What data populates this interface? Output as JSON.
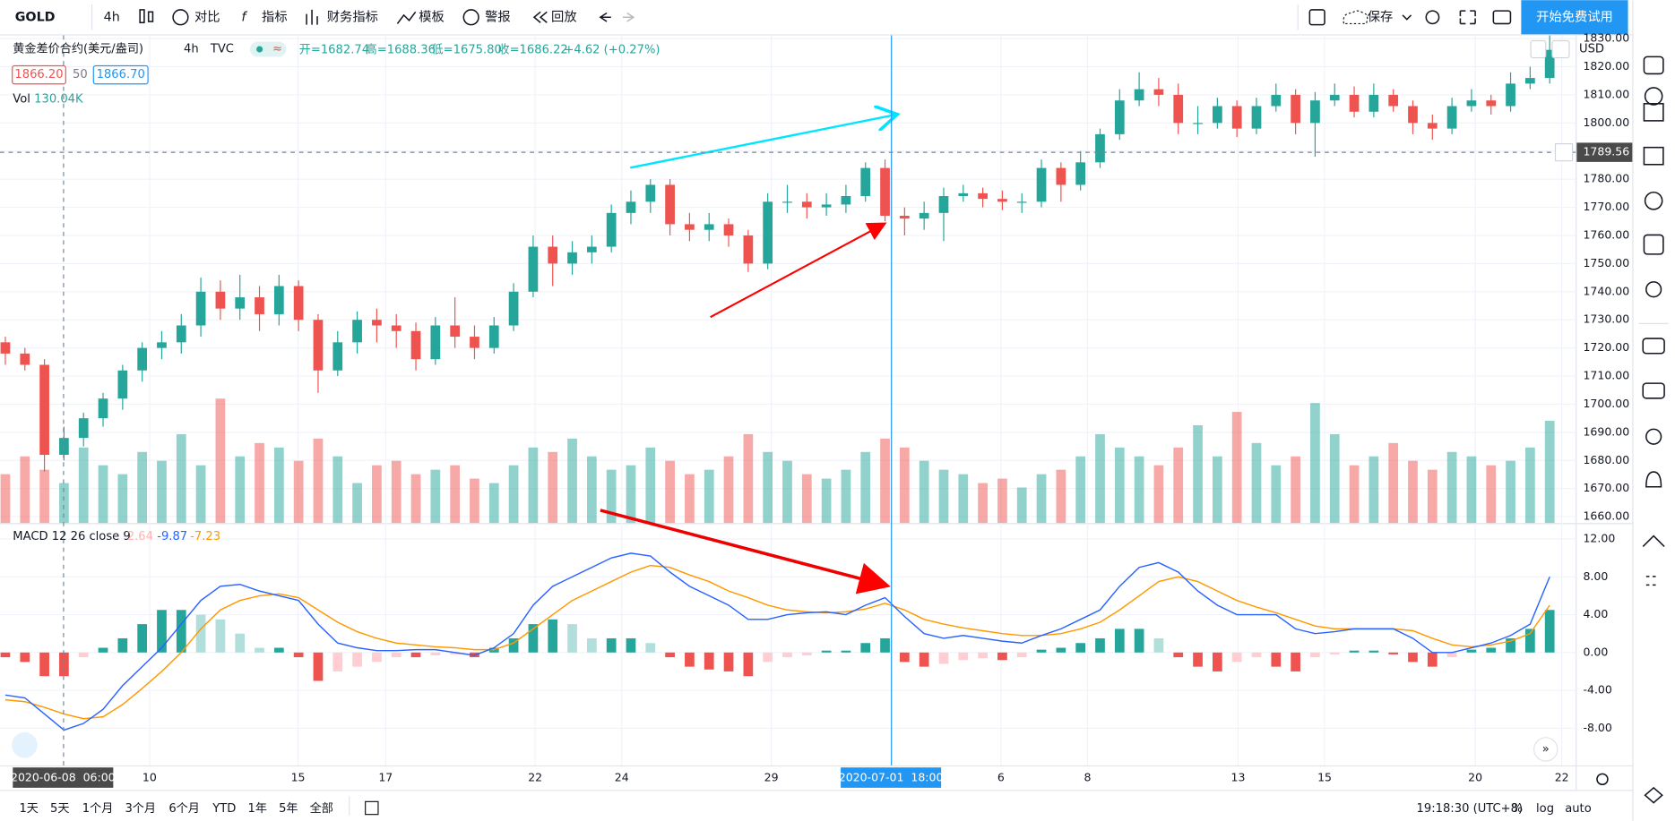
{
  "toolbar": {
    "symbol": "GOLD",
    "interval": "4h",
    "compare": "对比",
    "indicators": "指标",
    "financials": "财务指标",
    "templates": "模板",
    "alerts": "警报",
    "replay": "回放",
    "save": "保存",
    "trial": "开始免费试用"
  },
  "chart_data": {
    "type": "candlestick",
    "title": "黄金差价合约(美元/盎司)",
    "interval": "4h",
    "source": "TVC",
    "ohlc_legend": [
      "开=1682.74",
      "高=1688.36",
      "低=1675.80",
      "收=1686.22",
      "+4.62 (+0.27%)"
    ],
    "bid": "1866.20",
    "spread": "50",
    "ask": "1866.70",
    "volume_label": "Vol",
    "volume_value": "130.04K",
    "currency": "USD",
    "up_color": "#26a69a",
    "down_color": "#ef5350",
    "ylim": [
      1657.72,
      1831.14
    ],
    "yticks": [
      {
        "value": 1660,
        "label": "1660.00"
      },
      {
        "value": 1670,
        "label": "1670.00"
      },
      {
        "value": 1680,
        "label": "1680.00"
      },
      {
        "value": 1690,
        "label": "1690.00"
      },
      {
        "value": 1700,
        "label": "1700.00"
      },
      {
        "value": 1710,
        "label": "1710.00"
      },
      {
        "value": 1720,
        "label": "1720.00"
      },
      {
        "value": 1730,
        "label": "1730.00"
      },
      {
        "value": 1740,
        "label": "1740.00"
      },
      {
        "value": 1750,
        "label": "1750.00"
      },
      {
        "value": 1760,
        "label": "1760.00"
      },
      {
        "value": 1770,
        "label": "1770.00"
      },
      {
        "value": 1780,
        "label": "1780.00"
      },
      {
        "value": 1790,
        "label": "1790.00"
      },
      {
        "value": 1800,
        "label": "1800.00"
      },
      {
        "value": 1810,
        "label": "1810.00"
      },
      {
        "value": 1820,
        "label": "1820.00"
      },
      {
        "value": 1830,
        "label": "1830.00"
      }
    ],
    "crosshair_price": 1789.56,
    "candles": [
      [
        1722,
        1724,
        1714,
        1718
      ],
      [
        1718,
        1720,
        1712,
        1714
      ],
      [
        1714,
        1716,
        1676,
        1682
      ],
      [
        1682,
        1692,
        1680,
        1688
      ],
      [
        1688,
        1697,
        1685,
        1695
      ],
      [
        1695,
        1704,
        1692,
        1702
      ],
      [
        1702,
        1714,
        1698,
        1712
      ],
      [
        1712,
        1722,
        1708,
        1720
      ],
      [
        1720,
        1726,
        1716,
        1722
      ],
      [
        1722,
        1732,
        1718,
        1728
      ],
      [
        1728,
        1745,
        1724,
        1740
      ],
      [
        1740,
        1744,
        1730,
        1734
      ],
      [
        1734,
        1746,
        1730,
        1738
      ],
      [
        1738,
        1742,
        1726,
        1732
      ],
      [
        1732,
        1746,
        1728,
        1742
      ],
      [
        1742,
        1744,
        1726,
        1730
      ],
      [
        1730,
        1732,
        1704,
        1712
      ],
      [
        1712,
        1726,
        1710,
        1722
      ],
      [
        1722,
        1733,
        1718,
        1730
      ],
      [
        1730,
        1734,
        1722,
        1728
      ],
      [
        1728,
        1732,
        1720,
        1726
      ],
      [
        1726,
        1729,
        1712,
        1716
      ],
      [
        1716,
        1731,
        1714,
        1728
      ],
      [
        1728,
        1738,
        1720,
        1724
      ],
      [
        1724,
        1728,
        1716,
        1720
      ],
      [
        1720,
        1731,
        1718,
        1728
      ],
      [
        1728,
        1743,
        1726,
        1740
      ],
      [
        1740,
        1760,
        1738,
        1756
      ],
      [
        1756,
        1760,
        1742,
        1750
      ],
      [
        1750,
        1758,
        1746,
        1754
      ],
      [
        1754,
        1760,
        1750,
        1756
      ],
      [
        1756,
        1771,
        1754,
        1768
      ],
      [
        1768,
        1776,
        1764,
        1772
      ],
      [
        1772,
        1780,
        1768,
        1778
      ],
      [
        1778,
        1780,
        1760,
        1764
      ],
      [
        1764,
        1768,
        1758,
        1762
      ],
      [
        1762,
        1768,
        1758,
        1764
      ],
      [
        1764,
        1766,
        1756,
        1760
      ],
      [
        1760,
        1762,
        1747,
        1750
      ],
      [
        1750,
        1775,
        1748,
        1772
      ],
      [
        1772,
        1778,
        1768,
        1772
      ],
      [
        1772,
        1775,
        1766,
        1770
      ],
      [
        1770,
        1775,
        1767,
        1771
      ],
      [
        1771,
        1778,
        1768,
        1774
      ],
      [
        1774,
        1786,
        1772,
        1784
      ],
      [
        1784,
        1787,
        1765,
        1767
      ],
      [
        1767,
        1770,
        1760,
        1766
      ],
      [
        1766,
        1772,
        1762,
        1768
      ],
      [
        1768,
        1777,
        1758,
        1774
      ],
      [
        1774,
        1778,
        1772,
        1775
      ],
      [
        1775,
        1777,
        1770,
        1773
      ],
      [
        1773,
        1776,
        1769,
        1772
      ],
      [
        1772,
        1775,
        1768,
        1772
      ],
      [
        1772,
        1787,
        1770,
        1784
      ],
      [
        1784,
        1786,
        1772,
        1778
      ],
      [
        1778,
        1790,
        1776,
        1786
      ],
      [
        1786,
        1798,
        1784,
        1796
      ],
      [
        1796,
        1812,
        1794,
        1808
      ],
      [
        1808,
        1818,
        1806,
        1812
      ],
      [
        1812,
        1816,
        1806,
        1810
      ],
      [
        1810,
        1814,
        1796,
        1800
      ],
      [
        1800,
        1806,
        1796,
        1800
      ],
      [
        1800,
        1809,
        1798,
        1806
      ],
      [
        1806,
        1808,
        1795,
        1798
      ],
      [
        1798,
        1809,
        1796,
        1806
      ],
      [
        1806,
        1814,
        1804,
        1810
      ],
      [
        1810,
        1812,
        1796,
        1800
      ],
      [
        1800,
        1811,
        1788,
        1808
      ],
      [
        1808,
        1814,
        1806,
        1810
      ],
      [
        1810,
        1813,
        1802,
        1804
      ],
      [
        1804,
        1814,
        1802,
        1810
      ],
      [
        1810,
        1812,
        1804,
        1806
      ],
      [
        1806,
        1808,
        1796,
        1800
      ],
      [
        1800,
        1803,
        1794,
        1798
      ],
      [
        1798,
        1809,
        1796,
        1806
      ],
      [
        1806,
        1812,
        1804,
        1808
      ],
      [
        1808,
        1810,
        1803,
        1806
      ],
      [
        1806,
        1818,
        1804,
        1814
      ],
      [
        1814,
        1820,
        1812,
        1816
      ],
      [
        1816,
        1834,
        1814,
        1826
      ]
    ],
    "volume_lim": [
      0,
      300
    ],
    "volume": [
      110,
      150,
      120,
      90,
      170,
      130,
      110,
      160,
      140,
      200,
      130,
      280,
      150,
      180,
      170,
      140,
      190,
      150,
      90,
      130,
      140,
      110,
      120,
      130,
      100,
      90,
      130,
      170,
      160,
      190,
      150,
      120,
      130,
      170,
      140,
      110,
      120,
      150,
      200,
      160,
      140,
      110,
      100,
      120,
      160,
      190,
      170,
      140,
      120,
      110,
      90,
      100,
      80,
      110,
      120,
      150,
      200,
      170,
      150,
      130,
      170,
      220,
      150,
      250,
      180,
      130,
      150,
      270,
      200,
      130,
      150,
      180,
      140,
      120,
      160,
      150,
      130,
      140,
      170,
      230
    ],
    "xticks": [
      "10",
      "15",
      "17",
      "22",
      "24",
      "29",
      "6",
      "8",
      "13",
      "15",
      "20",
      "22"
    ],
    "crosshair_times": [
      "2020-06-08  06:00",
      "2020-07-01  18:00"
    ],
    "macd": {
      "label": "MACD 12 26 close 9",
      "legend_values": [
        "-2.64",
        "-9.87",
        "-7.23"
      ],
      "ylim": [
        -11.93,
        13.57
      ],
      "yticks": [
        {
          "value": 12,
          "label": "12.00"
        },
        {
          "value": 8,
          "label": "8.00"
        },
        {
          "value": 4,
          "label": "4.00"
        },
        {
          "value": 0,
          "label": "0.00"
        },
        {
          "value": -4,
          "label": "-4.00"
        },
        {
          "value": -8,
          "label": "-8.00"
        }
      ],
      "macd_color": "#2962ff",
      "signal_color": "#ff9800",
      "macd_line": [
        -4.5,
        -4.8,
        -6.5,
        -8.2,
        -7.5,
        -6,
        -3.5,
        -1.5,
        0.5,
        3,
        5.5,
        7,
        7.2,
        6.5,
        6,
        5.5,
        3,
        1,
        0.5,
        0.2,
        0.2,
        0.3,
        0.3,
        0,
        -0.3,
        0.5,
        2,
        5,
        7,
        8,
        9,
        10,
        10.5,
        10.2,
        8.5,
        7,
        6,
        5,
        3.5,
        3.5,
        4,
        4.2,
        4.3,
        4,
        5,
        5.8,
        3.8,
        2,
        1.5,
        1.8,
        1.5,
        1.2,
        1,
        1.8,
        2.5,
        3.5,
        4.5,
        7,
        9,
        9.5,
        8.5,
        6.5,
        5,
        4,
        4,
        4,
        2.5,
        2,
        2.2,
        2.5,
        2.5,
        2.5,
        1.5,
        0,
        0,
        0.5,
        1,
        1.8,
        3,
        8
      ],
      "signal_line": [
        -5,
        -5.2,
        -5.8,
        -6.5,
        -7,
        -6.8,
        -5.5,
        -3.8,
        -2,
        0,
        2.5,
        4.5,
        5.5,
        6,
        6.2,
        5.8,
        4.5,
        3.2,
        2.2,
        1.5,
        1,
        0.8,
        0.6,
        0.5,
        0.3,
        0.3,
        1,
        2.5,
        4,
        5.5,
        6.5,
        7.5,
        8.5,
        9.2,
        9,
        8.2,
        7.5,
        6.5,
        5.8,
        5,
        4.5,
        4.3,
        4.2,
        4.3,
        4.6,
        5.2,
        4.5,
        3.5,
        3,
        2.6,
        2.3,
        2,
        1.8,
        1.8,
        2,
        2.5,
        3.2,
        4.5,
        6,
        7.5,
        8,
        7.5,
        6.5,
        5.5,
        4.8,
        4.2,
        3.5,
        2.8,
        2.5,
        2.5,
        2.5,
        2.5,
        2.3,
        1.5,
        0.8,
        0.6,
        0.8,
        1.2,
        2,
        5
      ],
      "histogram": [
        -0.5,
        -1,
        -2.5,
        -2.5,
        -0.5,
        0.5,
        1.5,
        3,
        4.5,
        4.5,
        4,
        3.5,
        2,
        0.5,
        0.5,
        -0.5,
        -3,
        -2,
        -1.5,
        -1,
        -0.5,
        -0.5,
        -0.3,
        -0.2,
        -0.5,
        0.5,
        1.5,
        3,
        3.5,
        3,
        1.5,
        1.5,
        1.5,
        1,
        -0.5,
        -1.5,
        -1.8,
        -2,
        -2.5,
        -1,
        -0.5,
        -0.3,
        0.2,
        0.2,
        1,
        1.5,
        -1,
        -1.5,
        -1.2,
        -0.8,
        -0.6,
        -0.8,
        -0.5,
        0.3,
        0.5,
        1,
        1.5,
        2.5,
        2.5,
        1.5,
        -0.5,
        -1.5,
        -2,
        -1,
        -0.5,
        -1.5,
        -2,
        -0.5,
        -0.2,
        0.2,
        0.2,
        -0.2,
        -1,
        -1.5,
        -0.5,
        0.3,
        0.5,
        1.5,
        2.5,
        4.5
      ]
    }
  },
  "bottom_bar": {
    "ranges": [
      "1天",
      "5天",
      "1个月",
      "3个月",
      "6个月",
      "YTD",
      "1年",
      "5年",
      "全部"
    ],
    "clock": "19:18:30 (UTC+8)",
    "percent": "%",
    "log": "log",
    "auto": "auto"
  }
}
